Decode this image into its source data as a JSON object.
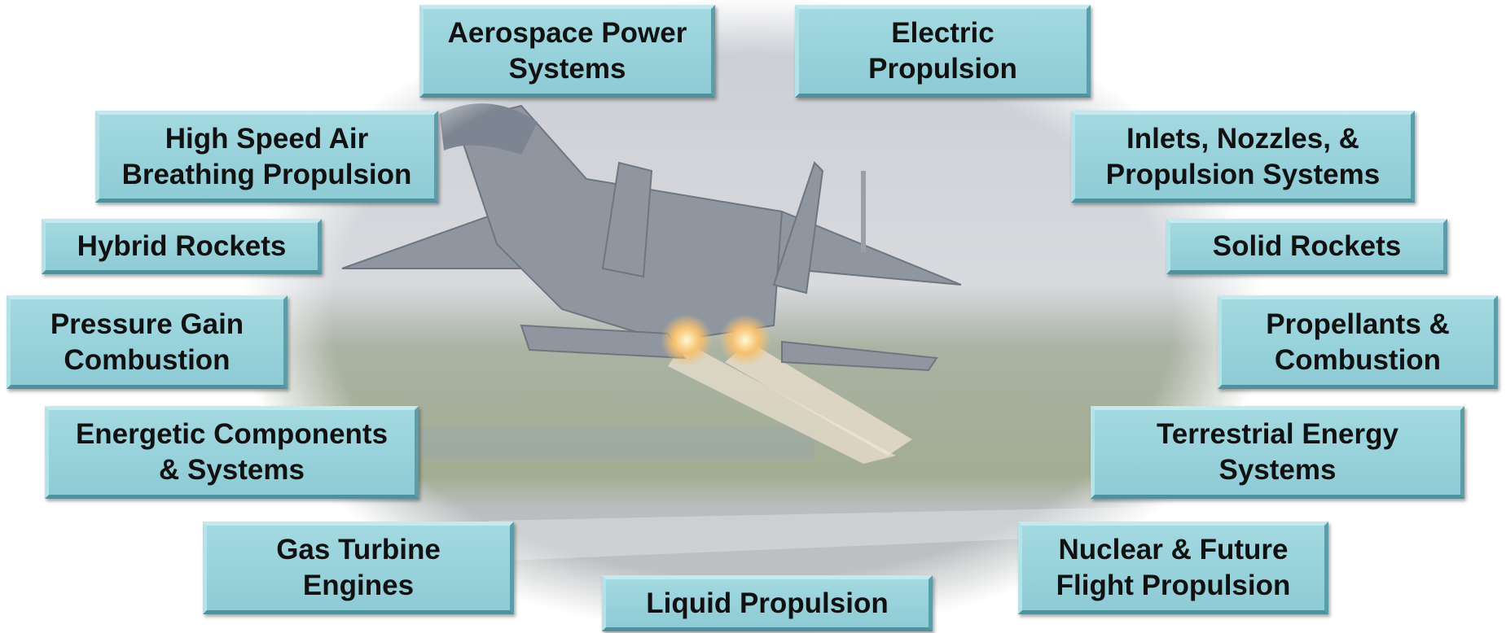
{
  "nodes": [
    {
      "lines": [
        "Aerospace Power",
        "Systems"
      ]
    },
    {
      "lines": [
        "Electric",
        "Propulsion"
      ]
    },
    {
      "lines": [
        "High Speed Air",
        "Breathing Propulsion"
      ]
    },
    {
      "lines": [
        "Inlets, Nozzles, &",
        "Propulsion Systems"
      ]
    },
    {
      "lines": [
        "Hybrid Rockets"
      ]
    },
    {
      "lines": [
        "Solid Rockets"
      ]
    },
    {
      "lines": [
        "Pressure Gain",
        "Combustion"
      ]
    },
    {
      "lines": [
        "Propellants &",
        "Combustion"
      ]
    },
    {
      "lines": [
        "Energetic Components",
        "& Systems"
      ]
    },
    {
      "lines": [
        "Terrestrial Energy",
        "Systems"
      ]
    },
    {
      "lines": [
        "Gas Turbine",
        "Engines"
      ]
    },
    {
      "lines": [
        "Nuclear & Future",
        "Flight Propulsion"
      ]
    },
    {
      "lines": [
        "Liquid Propulsion"
      ]
    }
  ]
}
